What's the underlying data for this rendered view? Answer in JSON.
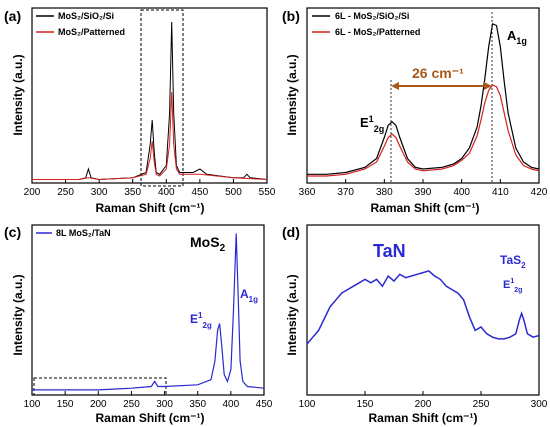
{
  "panels": [
    {
      "id": "a",
      "label": "(a)",
      "xlabel": "Raman Shift (cm⁻¹)",
      "ylabel": "Intensity (a.u.)",
      "legend": [
        "MoS₂/SiO₂/Si",
        "MoS₂/Patterned"
      ]
    },
    {
      "id": "b",
      "label": "(b)",
      "xlabel": "Raman Shift (cm⁻¹)",
      "ylabel": "Intensity (a.u.)",
      "legend": [
        "6L - MoS₂/SiO₂/Si",
        "6L - MoS₂/Patterned"
      ],
      "annotations": {
        "shift": "26 cm⁻¹",
        "e_peak_main": "E",
        "e_peak_sup": "1",
        "e_peak_sub": "2g",
        "a_peak_main": "A",
        "a_peak_sub": "1g"
      }
    },
    {
      "id": "c",
      "label": "(c)",
      "xlabel": "Raman Shift (cm⁻¹)",
      "ylabel": "Intensity (a.u.)",
      "legend": [
        "8L MoS₂/TaN"
      ],
      "annotations": {
        "material_main": "MoS",
        "material_sub": "2",
        "e_peak_main": "E",
        "e_peak_sup": "1",
        "e_peak_sub": "2g",
        "a_peak_main": "A",
        "a_peak_sub": "1g"
      }
    },
    {
      "id": "d",
      "label": "(d)",
      "xlabel": "Raman Shift (cm⁻¹)",
      "ylabel": "Intensity (a.u.)",
      "legend": [],
      "annotations": {
        "material": "TaN",
        "compound_main": "TaS",
        "compound_sub": "2",
        "e_peak_main": "E",
        "e_peak_sup": "1",
        "e_peak_sub": "2g"
      }
    }
  ],
  "chart_data": [
    {
      "panel": "a",
      "type": "line",
      "xlim": [
        200,
        550
      ],
      "ylim": [
        0,
        1
      ],
      "xticks": [
        200,
        250,
        300,
        350,
        400,
        450,
        500,
        550
      ],
      "series": [
        {
          "name": "MoS₂/SiO₂/Si",
          "color": "#000000",
          "x": [
            200,
            270,
            280,
            284,
            288,
            300,
            350,
            370,
            376,
            379,
            382,
            385,
            390,
            400,
            405,
            408,
            411,
            415,
            420,
            440,
            450,
            460,
            500,
            515,
            520,
            525,
            550
          ],
          "y": [
            0.02,
            0.02,
            0.03,
            0.08,
            0.03,
            0.02,
            0.03,
            0.06,
            0.22,
            0.36,
            0.18,
            0.06,
            0.05,
            0.1,
            0.4,
            0.92,
            0.4,
            0.1,
            0.06,
            0.06,
            0.08,
            0.05,
            0.03,
            0.03,
            0.05,
            0.03,
            0.02
          ]
        },
        {
          "name": "MoS₂/Patterned",
          "color": "#d42020",
          "x": [
            200,
            270,
            284,
            300,
            350,
            370,
            376,
            379,
            382,
            385,
            390,
            400,
            405,
            408,
            411,
            415,
            420,
            450,
            500,
            550
          ],
          "y": [
            0.02,
            0.02,
            0.03,
            0.02,
            0.03,
            0.05,
            0.14,
            0.24,
            0.12,
            0.05,
            0.04,
            0.08,
            0.22,
            0.52,
            0.22,
            0.08,
            0.05,
            0.05,
            0.03,
            0.02
          ]
        }
      ]
    },
    {
      "panel": "b",
      "type": "line",
      "xlim": [
        360,
        420
      ],
      "ylim": [
        0,
        1
      ],
      "xticks": [
        360,
        370,
        380,
        390,
        400,
        410,
        420
      ],
      "series": [
        {
          "name": "6L - MoS₂/SiO₂/Si",
          "color": "#000000",
          "x": [
            360,
            365,
            370,
            375,
            378,
            380,
            381,
            382,
            383,
            384,
            386,
            388,
            390,
            395,
            398,
            400,
            402,
            404,
            405,
            406,
            407,
            408,
            409,
            410,
            411,
            412,
            414,
            416,
            418,
            420
          ],
          "y": [
            0.05,
            0.05,
            0.06,
            0.09,
            0.14,
            0.26,
            0.33,
            0.35,
            0.33,
            0.26,
            0.14,
            0.09,
            0.08,
            0.09,
            0.11,
            0.14,
            0.2,
            0.32,
            0.44,
            0.6,
            0.78,
            0.91,
            0.9,
            0.78,
            0.58,
            0.4,
            0.2,
            0.12,
            0.09,
            0.08
          ]
        },
        {
          "name": "6L - MoS₂/Patterned",
          "color": "#d42020",
          "x": [
            360,
            365,
            370,
            375,
            378,
            380,
            381,
            382,
            383,
            384,
            386,
            388,
            390,
            395,
            398,
            400,
            402,
            404,
            405,
            406,
            407,
            408,
            409,
            410,
            411,
            412,
            414,
            416,
            418,
            420
          ],
          "y": [
            0.04,
            0.04,
            0.05,
            0.08,
            0.12,
            0.21,
            0.26,
            0.28,
            0.26,
            0.21,
            0.12,
            0.08,
            0.07,
            0.08,
            0.1,
            0.13,
            0.17,
            0.27,
            0.36,
            0.46,
            0.53,
            0.56,
            0.55,
            0.5,
            0.4,
            0.3,
            0.16,
            0.1,
            0.08,
            0.07
          ]
        }
      ]
    },
    {
      "panel": "c",
      "type": "line",
      "xlim": [
        100,
        450
      ],
      "ylim": [
        0,
        1
      ],
      "xticks": [
        100,
        150,
        200,
        250,
        300,
        350,
        400,
        450
      ],
      "series": [
        {
          "name": "8L MoS₂/TaN",
          "color": "#2a2ad0",
          "x": [
            100,
            150,
            200,
            250,
            280,
            285,
            290,
            300,
            350,
            370,
            376,
            380,
            383,
            386,
            390,
            395,
            400,
            404,
            408,
            411,
            414,
            418,
            425,
            450
          ],
          "y": [
            0.03,
            0.03,
            0.03,
            0.04,
            0.05,
            0.08,
            0.05,
            0.05,
            0.06,
            0.09,
            0.2,
            0.38,
            0.42,
            0.3,
            0.12,
            0.08,
            0.15,
            0.5,
            0.95,
            0.6,
            0.2,
            0.08,
            0.05,
            0.04
          ]
        }
      ]
    },
    {
      "panel": "d",
      "type": "line",
      "xlim": [
        100,
        300
      ],
      "ylim": [
        0,
        1
      ],
      "xticks": [
        100,
        150,
        200,
        250,
        300
      ],
      "series": [
        {
          "name": "TaN",
          "color": "#2a2ad0",
          "x": [
            100,
            105,
            110,
            115,
            120,
            125,
            130,
            135,
            140,
            145,
            150,
            155,
            160,
            165,
            170,
            175,
            180,
            185,
            190,
            195,
            200,
            205,
            210,
            215,
            220,
            225,
            230,
            235,
            240,
            245,
            250,
            255,
            260,
            265,
            270,
            275,
            280,
            283,
            285,
            287,
            290,
            295,
            300
          ],
          "y": [
            0.3,
            0.34,
            0.38,
            0.45,
            0.52,
            0.56,
            0.6,
            0.62,
            0.64,
            0.66,
            0.68,
            0.66,
            0.68,
            0.64,
            0.7,
            0.67,
            0.71,
            0.69,
            0.7,
            0.71,
            0.72,
            0.73,
            0.7,
            0.68,
            0.64,
            0.62,
            0.6,
            0.56,
            0.46,
            0.38,
            0.4,
            0.36,
            0.34,
            0.33,
            0.33,
            0.34,
            0.36,
            0.44,
            0.48,
            0.44,
            0.36,
            0.34,
            0.35
          ]
        }
      ]
    }
  ]
}
